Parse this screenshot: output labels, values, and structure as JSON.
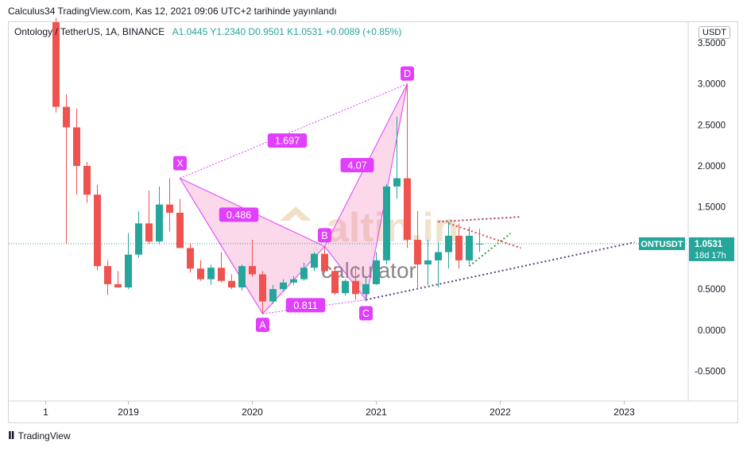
{
  "header": {
    "publish_text": "Calculus34 TradingView.com, Kas 12, 2021 09:06 UTC+2 tarihinde yayınlandı"
  },
  "legend": {
    "symbol": "Ontology / TetherUS, 1A, BINANCE",
    "open": "A1.0445",
    "high": "Y1.2340",
    "low": "D0.9501",
    "close": "K1.0531",
    "change": "+0.0089 (+0.85%)"
  },
  "currency_button": "USDT",
  "price_tag": {
    "label": "ONTUSDT",
    "price": "1.0531",
    "countdown": "18d 17h"
  },
  "watermark": {
    "top": "altin.in",
    "bottom": "calculator"
  },
  "footer": {
    "brand": "TradingView"
  },
  "colors": {
    "up": "#26a69a",
    "down": "#ef5350",
    "pattern": "#e040fb",
    "tag": "#26a69a"
  },
  "chart_data": {
    "type": "candlestick",
    "title": "Ontology / TetherUS, 1A, BINANCE",
    "ylim": [
      -0.75,
      3.75
    ],
    "y_ticks": [
      "3.5000",
      "3.0000",
      "2.5000",
      "2.0000",
      "1.5000",
      "1.0000",
      "0.5000",
      "0.0000",
      "-0.5000"
    ],
    "y_tick_values": [
      3.5,
      3.0,
      2.5,
      2.0,
      1.5,
      1.0,
      0.5,
      0.0,
      -0.5
    ],
    "x_ticks": [
      "1",
      "2019",
      "2020",
      "2021",
      "2022",
      "2023"
    ],
    "x_tick_months": [
      "2018-05",
      "2019-01",
      "2020-01",
      "2021-01",
      "2022-01",
      "2023-01"
    ],
    "candles": [
      {
        "t": "2018-06",
        "o": 3.75,
        "h": 3.8,
        "l": 2.65,
        "c": 2.72
      },
      {
        "t": "2018-07",
        "o": 2.72,
        "h": 2.87,
        "l": 1.05,
        "c": 2.47
      },
      {
        "t": "2018-08",
        "o": 2.47,
        "h": 2.7,
        "l": 1.65,
        "c": 2.0
      },
      {
        "t": "2018-09",
        "o": 2.0,
        "h": 2.05,
        "l": 1.55,
        "c": 1.65
      },
      {
        "t": "2018-10",
        "o": 1.65,
        "h": 1.77,
        "l": 0.73,
        "c": 0.78
      },
      {
        "t": "2018-11",
        "o": 0.78,
        "h": 0.85,
        "l": 0.43,
        "c": 0.56
      },
      {
        "t": "2018-12",
        "o": 0.56,
        "h": 0.72,
        "l": 0.52,
        "c": 0.52
      },
      {
        "t": "2019-01",
        "o": 0.52,
        "h": 1.18,
        "l": 0.5,
        "c": 0.92
      },
      {
        "t": "2019-02",
        "o": 0.92,
        "h": 1.45,
        "l": 0.88,
        "c": 1.3
      },
      {
        "t": "2019-03",
        "o": 1.3,
        "h": 1.7,
        "l": 1.05,
        "c": 1.08
      },
      {
        "t": "2019-04",
        "o": 1.08,
        "h": 1.75,
        "l": 1.05,
        "c": 1.53
      },
      {
        "t": "2019-05",
        "o": 1.53,
        "h": 1.85,
        "l": 1.2,
        "c": 1.43
      },
      {
        "t": "2019-06",
        "o": 1.43,
        "h": 1.6,
        "l": 1.0,
        "c": 1.0
      },
      {
        "t": "2019-07",
        "o": 1.0,
        "h": 1.06,
        "l": 0.7,
        "c": 0.75
      },
      {
        "t": "2019-08",
        "o": 0.75,
        "h": 0.85,
        "l": 0.6,
        "c": 0.62
      },
      {
        "t": "2019-09",
        "o": 0.62,
        "h": 0.8,
        "l": 0.55,
        "c": 0.76
      },
      {
        "t": "2019-10",
        "o": 0.76,
        "h": 0.95,
        "l": 0.58,
        "c": 0.6
      },
      {
        "t": "2019-11",
        "o": 0.6,
        "h": 0.68,
        "l": 0.5,
        "c": 0.52
      },
      {
        "t": "2019-12",
        "o": 0.52,
        "h": 0.8,
        "l": 0.48,
        "c": 0.78
      },
      {
        "t": "2020-01",
        "o": 0.78,
        "h": 1.1,
        "l": 0.65,
        "c": 0.68
      },
      {
        "t": "2020-02",
        "o": 0.68,
        "h": 0.72,
        "l": 0.2,
        "c": 0.35
      },
      {
        "t": "2020-03",
        "o": 0.35,
        "h": 0.55,
        "l": 0.32,
        "c": 0.5
      },
      {
        "t": "2020-04",
        "o": 0.5,
        "h": 0.62,
        "l": 0.47,
        "c": 0.58
      },
      {
        "t": "2020-05",
        "o": 0.58,
        "h": 0.66,
        "l": 0.55,
        "c": 0.62
      },
      {
        "t": "2020-06",
        "o": 0.62,
        "h": 0.82,
        "l": 0.6,
        "c": 0.76
      },
      {
        "t": "2020-07",
        "o": 0.76,
        "h": 0.95,
        "l": 0.72,
        "c": 0.93
      },
      {
        "t": "2020-08",
        "o": 0.93,
        "h": 1.02,
        "l": 0.7,
        "c": 0.72
      },
      {
        "t": "2020-09",
        "o": 0.72,
        "h": 0.78,
        "l": 0.43,
        "c": 0.45
      },
      {
        "t": "2020-10",
        "o": 0.45,
        "h": 0.62,
        "l": 0.42,
        "c": 0.6
      },
      {
        "t": "2020-11",
        "o": 0.6,
        "h": 0.78,
        "l": 0.37,
        "c": 0.44
      },
      {
        "t": "2020-12",
        "o": 0.44,
        "h": 0.66,
        "l": 0.35,
        "c": 0.56
      },
      {
        "t": "2021-01",
        "o": 0.56,
        "h": 0.95,
        "l": 0.55,
        "c": 0.85
      },
      {
        "t": "2021-02",
        "o": 0.85,
        "h": 1.78,
        "l": 0.8,
        "c": 1.75
      },
      {
        "t": "2021-03",
        "o": 1.75,
        "h": 2.6,
        "l": 1.6,
        "c": 1.85
      },
      {
        "t": "2021-04",
        "o": 1.85,
        "h": 3.0,
        "l": 1.0,
        "c": 1.1
      },
      {
        "t": "2021-05",
        "o": 1.1,
        "h": 1.45,
        "l": 0.5,
        "c": 0.8
      },
      {
        "t": "2021-06",
        "o": 0.8,
        "h": 1.1,
        "l": 0.55,
        "c": 0.85
      },
      {
        "t": "2021-07",
        "o": 0.85,
        "h": 1.08,
        "l": 0.52,
        "c": 0.95
      },
      {
        "t": "2021-08",
        "o": 0.95,
        "h": 1.32,
        "l": 0.75,
        "c": 1.15
      },
      {
        "t": "2021-09",
        "o": 1.15,
        "h": 1.3,
        "l": 0.75,
        "c": 0.85
      },
      {
        "t": "2021-10",
        "o": 0.85,
        "h": 1.26,
        "l": 0.8,
        "c": 1.15
      },
      {
        "t": "2021-11",
        "o": 1.0445,
        "h": 1.234,
        "l": 0.9501,
        "c": 1.0531
      }
    ],
    "pattern": {
      "points": [
        {
          "label": "X",
          "t": "2019-06",
          "price": 1.85
        },
        {
          "label": "A",
          "t": "2020-02",
          "price": 0.2
        },
        {
          "label": "B",
          "t": "2020-08",
          "price": 1.02
        },
        {
          "label": "C",
          "t": "2020-12",
          "price": 0.37
        },
        {
          "label": "D",
          "t": "2021-04",
          "price": 3.0
        }
      ],
      "ratios": [
        {
          "text": "1.697",
          "between": [
            "X",
            "D"
          ]
        },
        {
          "text": "0.486",
          "between": [
            "X",
            "B"
          ]
        },
        {
          "text": "0.811",
          "between": [
            "A",
            "C"
          ]
        },
        {
          "text": "4.07",
          "between": [
            "B",
            "D"
          ]
        }
      ]
    },
    "current_price": 1.0531
  }
}
